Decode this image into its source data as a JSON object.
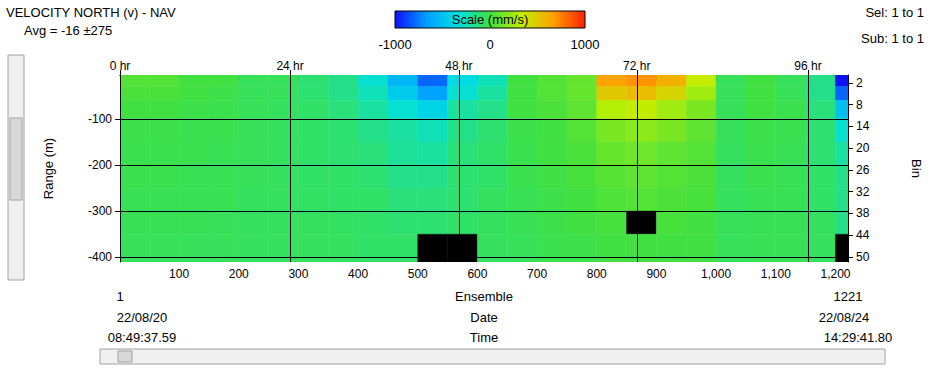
{
  "chart_data": {
    "type": "heatmap",
    "title": "VELOCITY NORTH (v) - NAV",
    "subtitle": "Avg = -16 ±275",
    "header_right": [
      "Sel: 1 to 1",
      "Sub: 1 to 1"
    ],
    "x_label": "Ensemble",
    "y_label": "Range (m)",
    "y2_label": "Bin",
    "xlim": [
      1,
      1221
    ],
    "xticks": [
      100,
      200,
      300,
      400,
      500,
      600,
      700,
      800,
      900,
      1000,
      1100,
      1200
    ],
    "x2ticks": [
      {
        "value": 1,
        "label": "0 hr"
      },
      {
        "value": 286,
        "label": "24 hr"
      },
      {
        "value": 569,
        "label": "48 hr"
      },
      {
        "value": 867,
        "label": "72 hr"
      },
      {
        "value": 1154,
        "label": "96 hr"
      }
    ],
    "ylim": [
      -410,
      -5
    ],
    "yticks": [
      -100,
      -200,
      -300,
      -400
    ],
    "y2lim": [
      -0.2,
      51.4
    ],
    "y2ticks": [
      2,
      8,
      14,
      20,
      26,
      32,
      38,
      44,
      50
    ],
    "date_label": "Date",
    "dates": [
      "22/08/20",
      "22/08/24"
    ],
    "time_label": "Time",
    "times": [
      "08:49:37.59",
      "14:29:41.80"
    ],
    "x_edges": [
      1,
      50,
      100,
      150,
      200,
      250,
      300,
      350,
      400,
      450,
      500,
      550,
      600,
      650,
      700,
      750,
      800,
      850,
      900,
      950,
      1000,
      1050,
      1100,
      1150,
      1200,
      1221
    ],
    "y_edges": [
      -5,
      -30,
      -60,
      -100,
      -150,
      -200,
      -250,
      -300,
      -350,
      -410
    ],
    "values": [
      [
        50,
        50,
        0,
        0,
        -50,
        -50,
        -100,
        -150,
        -300,
        -550,
        -800,
        -350,
        -250,
        0,
        50,
        100,
        650,
        700,
        600,
        350,
        -50,
        0,
        -50,
        -150,
        -1000
      ],
      [
        30,
        30,
        0,
        -20,
        -50,
        -50,
        -100,
        -150,
        -250,
        -450,
        -650,
        -300,
        -200,
        0,
        50,
        100,
        500,
        550,
        450,
        250,
        -50,
        0,
        -50,
        -150,
        -800
      ],
      [
        0,
        0,
        -20,
        -30,
        -50,
        -60,
        -80,
        -120,
        -200,
        -300,
        -400,
        -200,
        -150,
        0,
        30,
        80,
        300,
        350,
        250,
        150,
        -50,
        0,
        -30,
        -120,
        -500
      ],
      [
        -20,
        -20,
        -30,
        -30,
        -50,
        -60,
        -80,
        -100,
        -150,
        -200,
        -250,
        -150,
        -100,
        -20,
        0,
        50,
        150,
        200,
        150,
        80,
        -50,
        -20,
        -30,
        -100,
        -300
      ],
      [
        -30,
        -30,
        -30,
        -40,
        -50,
        -60,
        -80,
        -100,
        -120,
        -180,
        -200,
        -120,
        -80,
        -30,
        0,
        30,
        100,
        120,
        80,
        50,
        -60,
        -30,
        -40,
        -100,
        -200
      ],
      [
        -30,
        -30,
        -40,
        -40,
        -50,
        -60,
        -80,
        -80,
        -100,
        -150,
        -150,
        -100,
        -80,
        -30,
        -10,
        20,
        60,
        80,
        50,
        30,
        -60,
        -30,
        -40,
        -80,
        -150
      ],
      [
        -40,
        -40,
        -40,
        -40,
        -60,
        -60,
        -70,
        -80,
        -80,
        -120,
        -120,
        -100,
        -60,
        -40,
        -20,
        0,
        40,
        50,
        30,
        20,
        -60,
        -40,
        -40,
        -80,
        -150
      ],
      [
        -40,
        -40,
        -40,
        -50,
        -60,
        -60,
        -60,
        -70,
        -80,
        -100,
        -100,
        -80,
        -60,
        -40,
        -20,
        0,
        20,
        null,
        20,
        0,
        -50,
        -40,
        -40,
        -60,
        -150
      ],
      [
        -50,
        -50,
        -50,
        -50,
        -60,
        -60,
        -60,
        -60,
        -80,
        -80,
        null,
        null,
        -60,
        -50,
        -30,
        -20,
        0,
        0,
        0,
        0,
        -50,
        -40,
        -40,
        -60,
        null
      ]
    ],
    "colorbar": {
      "title": "Scale (mm/s)",
      "range": [
        -1000,
        1000
      ],
      "ticks": [
        -1000,
        0,
        1000
      ],
      "colors": [
        "#1010ff",
        "#00a0ff",
        "#00e0e0",
        "#40e040",
        "#c0f000",
        "#ffa000",
        "#ff2000"
      ]
    },
    "grid": true
  }
}
